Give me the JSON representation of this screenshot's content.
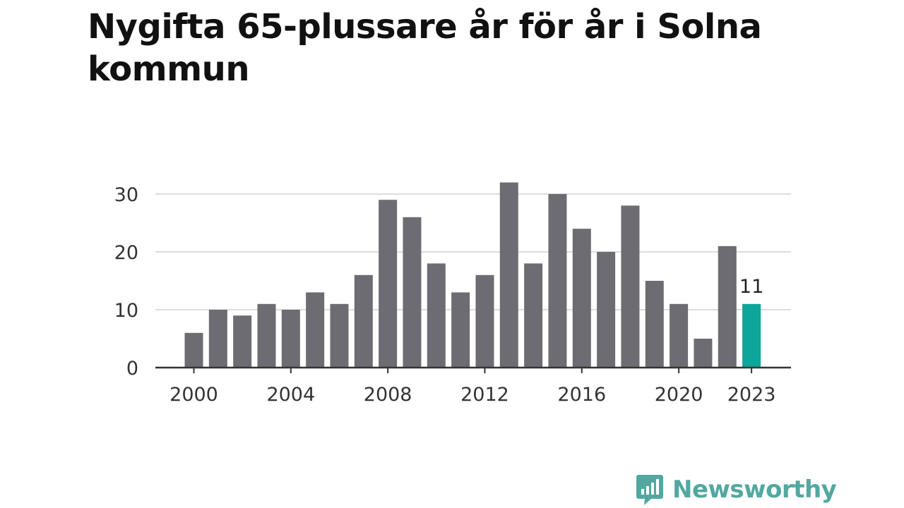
{
  "chart_data": {
    "type": "bar",
    "title": "Nygifta 65-plussare år för år i Solna kommun",
    "xlabel": "",
    "ylabel": "",
    "x": [
      2000,
      2001,
      2002,
      2003,
      2004,
      2005,
      2006,
      2007,
      2008,
      2009,
      2010,
      2011,
      2012,
      2013,
      2014,
      2015,
      2016,
      2017,
      2018,
      2019,
      2020,
      2021,
      2022,
      2023
    ],
    "values": [
      6,
      10,
      9,
      11,
      10,
      13,
      11,
      16,
      29,
      26,
      18,
      13,
      16,
      32,
      18,
      30,
      24,
      20,
      28,
      15,
      11,
      5,
      21,
      11
    ],
    "ylim": [
      0,
      33
    ],
    "y_ticks": [
      "0",
      "10",
      "20",
      "30"
    ],
    "y_tick_values": [
      0,
      10,
      20,
      30
    ],
    "x_ticks": [
      "2000",
      "2004",
      "2008",
      "2012",
      "2016",
      "2020",
      "2023"
    ],
    "x_tick_values": [
      2000,
      2004,
      2008,
      2012,
      2016,
      2020,
      2023
    ],
    "highlight": {
      "x": 2023,
      "label": "11"
    },
    "colors": {
      "bar": "#6d6c72",
      "highlight": "#0ea59a",
      "grid": "#dddddd",
      "axis": "#333333"
    },
    "grid": true
  },
  "logo": {
    "text": "Newsworthy",
    "icon": "newsworthy-logo-icon",
    "color": "#52a8a0"
  }
}
